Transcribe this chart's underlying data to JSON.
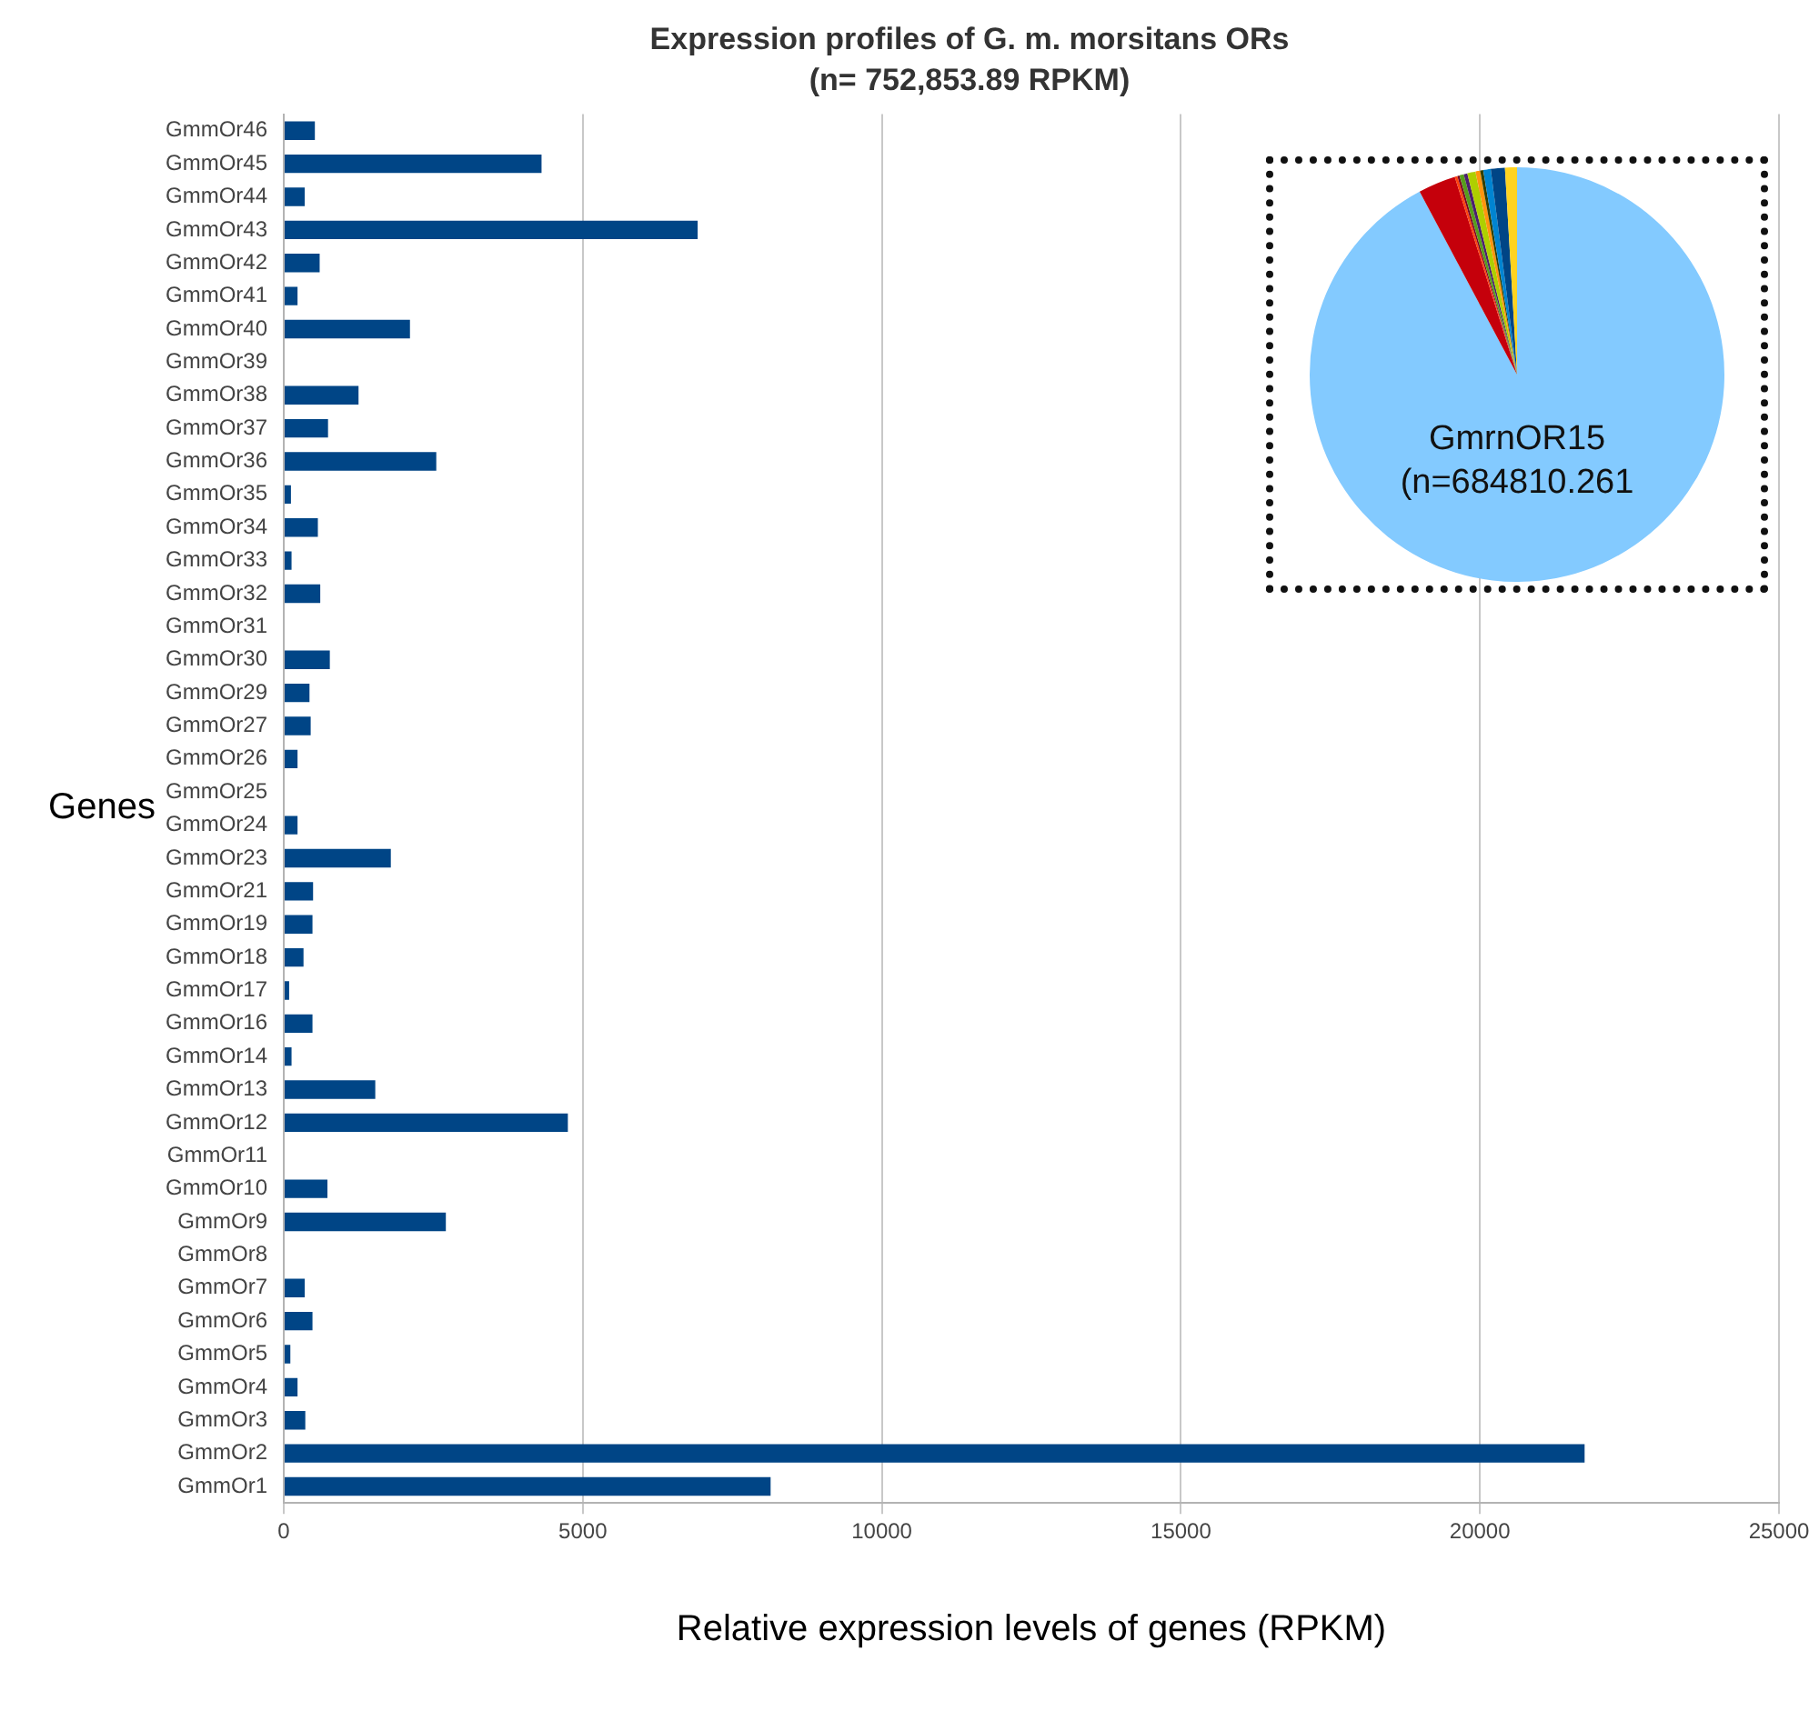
{
  "chart_data": [
    {
      "type": "bar",
      "orientation": "horizontal",
      "title": "Expression profiles of G. m. morsitans ORs",
      "subtitle": "(n= 752,853.89 RPKM)",
      "xlabel": "Relative expression levels of genes (RPKM)",
      "ylabel": "Genes",
      "categories": [
        "GmmOr46",
        "GmmOr45",
        "GmmOr44",
        "GmmOr43",
        "GmmOr42",
        "GmmOr41",
        "GmmOr40",
        "GmmOr39",
        "GmmOr38",
        "GmmOr37",
        "GmmOr36",
        "GmmOr35",
        "GmmOr34",
        "GmmOr33",
        "GmmOr32",
        "GmmOr31",
        "GmmOr30",
        "GmmOr29",
        "GmmOr27",
        "GmmOr26",
        "GmmOr25",
        "GmmOr24",
        "GmmOr23",
        "GmmOr21",
        "GmmOr19",
        "GmmOr18",
        "GmmOr17",
        "GmmOr16",
        "GmmOr14",
        "GmmOr13",
        "GmmOr12",
        "GmmOr11",
        "GmmOr10",
        "GmmOr9",
        "GmmOr8",
        "GmmOr7",
        "GmmOr6",
        "GmmOr5",
        "GmmOr4",
        "GmmOr3",
        "GmmOr2",
        "GmmOr1"
      ],
      "values": [
        520,
        4310,
        350,
        6920,
        600,
        230,
        2110,
        0,
        1250,
        740,
        2550,
        120,
        570,
        130,
        610,
        0,
        770,
        430,
        450,
        230,
        0,
        230,
        1790,
        490,
        480,
        330,
        90,
        480,
        130,
        1530,
        4750,
        0,
        730,
        2710,
        0,
        350,
        480,
        110,
        230,
        360,
        21750,
        8140
      ],
      "color": "#004586",
      "xlim": [
        0,
        25000
      ],
      "xticks": [
        0,
        5000,
        10000,
        15000,
        20000,
        25000
      ],
      "grid": "x",
      "legend": false
    },
    {
      "type": "pie",
      "categories": [
        "GmrnOR15",
        null,
        null,
        null,
        null,
        null,
        null,
        null,
        null,
        null,
        null,
        null
      ],
      "values": [
        684810.261,
        21750,
        1530,
        1250,
        2550,
        2110,
        4750,
        2710,
        1790,
        4310,
        8140,
        6920
      ],
      "colors": [
        "#83caff",
        "#c5000b",
        "#ff420e",
        "#7e0021",
        "#579d1c",
        "#4b1f6f",
        "#aecf00",
        "#ff950e",
        "#314004",
        "#0084d1",
        "#004586",
        "#ffd320"
      ],
      "value_labels": [
        "(n=684810.261",
        null,
        null,
        null,
        null,
        null,
        null,
        null,
        null,
        null,
        null,
        null
      ],
      "legend": false
    }
  ]
}
